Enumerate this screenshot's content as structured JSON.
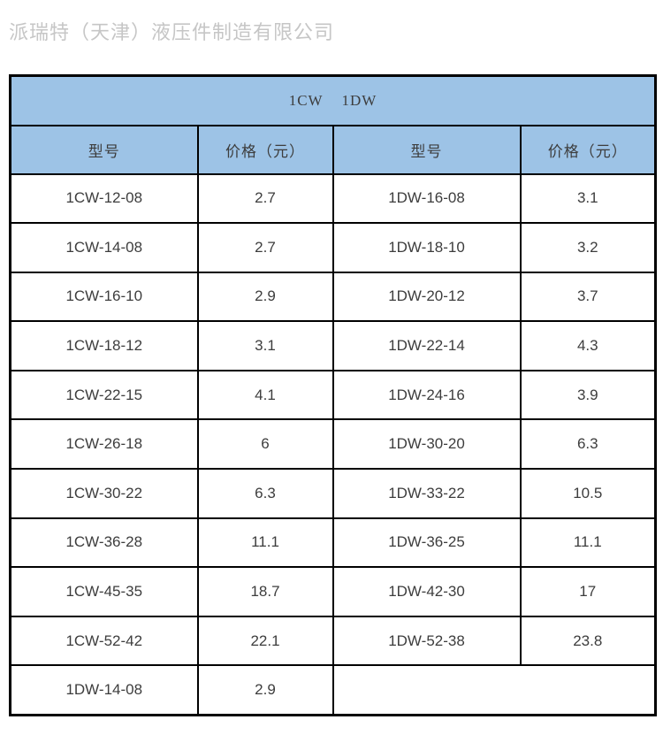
{
  "company": {
    "name": "派瑞特（天津）液压件制造有限公司",
    "text_color": "#c6c6c6"
  },
  "table": {
    "title": "1CW 1DW",
    "header_color": "#9dc3e6",
    "border_color": "#000000",
    "columns": [
      "型号",
      "价格（元）",
      "型号",
      "价格（元）"
    ],
    "rows": [
      [
        "1CW-12-08",
        "2.7",
        "1DW-16-08",
        "3.1"
      ],
      [
        "1CW-14-08",
        "2.7",
        "1DW-18-10",
        "3.2"
      ],
      [
        "1CW-16-10",
        "2.9",
        "1DW-20-12",
        "3.7"
      ],
      [
        "1CW-18-12",
        "3.1",
        "1DW-22-14",
        "4.3"
      ],
      [
        "1CW-22-15",
        "4.1",
        "1DW-24-16",
        "3.9"
      ],
      [
        "1CW-26-18",
        "6",
        "1DW-30-20",
        "6.3"
      ],
      [
        "1CW-30-22",
        "6.3",
        "1DW-33-22",
        "10.5"
      ],
      [
        "1CW-36-28",
        "11.1",
        "1DW-36-25",
        "11.1"
      ],
      [
        "1CW-45-35",
        "18.7",
        "1DW-42-30",
        "17"
      ],
      [
        "1CW-52-42",
        "22.1",
        "1DW-52-38",
        "23.8"
      ],
      [
        "1DW-14-08",
        "2.9",
        ""
      ]
    ]
  }
}
